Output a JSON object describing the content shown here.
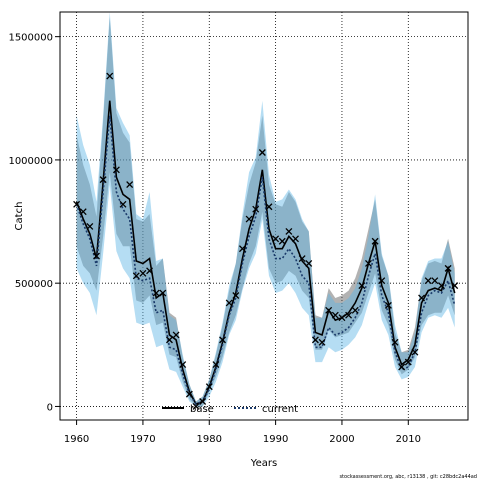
{
  "chart_data": {
    "type": "line",
    "xlabel": "Years",
    "ylabel": "Catch",
    "xlim": [
      1957.5,
      2019
    ],
    "ylim": [
      -55000,
      1600000
    ],
    "x_ticks": [
      1960,
      1970,
      1980,
      1990,
      2000,
      2010
    ],
    "y_ticks": [
      0,
      500000,
      1000000,
      1500000
    ],
    "grid": "dotted at ticks",
    "legend_position": "bottom-center",
    "footnote": "stockassessment.org, abc, r13138 , git: c28bdc2a44ad",
    "colors": {
      "base_line": "#000000",
      "base_band": "#555555",
      "current_line": "#1a3a6a",
      "current_band": "#5ab4e5",
      "observed_marker": "#000000"
    },
    "x": [
      1960,
      1961,
      1962,
      1963,
      1964,
      1965,
      1966,
      1967,
      1968,
      1969,
      1970,
      1971,
      1972,
      1973,
      1974,
      1975,
      1976,
      1977,
      1978,
      1979,
      1980,
      1981,
      1982,
      1983,
      1984,
      1985,
      1986,
      1987,
      1988,
      1989,
      1990,
      1991,
      1992,
      1993,
      1994,
      1995,
      1996,
      1997,
      1998,
      1999,
      2000,
      2001,
      2002,
      2003,
      2004,
      2005,
      2006,
      2007,
      2008,
      2009,
      2010,
      2011,
      2012,
      2013,
      2014,
      2015,
      2016,
      2017
    ],
    "series": [
      {
        "name": "base",
        "values": [
          830000,
          760000,
          700000,
          600000,
          910000,
          1240000,
          930000,
          860000,
          840000,
          590000,
          580000,
          600000,
          440000,
          460000,
          290000,
          270000,
          150000,
          60000,
          10000,
          20000,
          80000,
          160000,
          260000,
          380000,
          460000,
          600000,
          720000,
          800000,
          960000,
          720000,
          640000,
          640000,
          690000,
          660000,
          590000,
          560000,
          300000,
          290000,
          390000,
          350000,
          360000,
          380000,
          420000,
          480000,
          580000,
          670000,
          490000,
          420000,
          240000,
          170000,
          190000,
          250000,
          420000,
          470000,
          480000,
          470000,
          560000,
          460000
        ],
        "lower": [
          650000,
          570000,
          540000,
          470000,
          690000,
          950000,
          700000,
          650000,
          650000,
          430000,
          420000,
          450000,
          330000,
          340000,
          210000,
          200000,
          100000,
          30000,
          0,
          0,
          60000,
          120000,
          200000,
          300000,
          370000,
          480000,
          580000,
          650000,
          790000,
          560000,
          500000,
          510000,
          550000,
          530000,
          470000,
          440000,
          230000,
          230000,
          310000,
          280000,
          290000,
          300000,
          340000,
          380000,
          460000,
          540000,
          390000,
          330000,
          190000,
          130000,
          150000,
          200000,
          330000,
          370000,
          380000,
          380000,
          450000,
          370000
        ],
        "upper": [
          1100000,
          980000,
          900000,
          770000,
          1160000,
          1580000,
          1190000,
          1110000,
          1070000,
          760000,
          750000,
          780000,
          570000,
          600000,
          380000,
          360000,
          200000,
          90000,
          20000,
          40000,
          110000,
          210000,
          330000,
          470000,
          580000,
          760000,
          900000,
          990000,
          1180000,
          900000,
          820000,
          810000,
          870000,
          830000,
          750000,
          710000,
          370000,
          360000,
          480000,
          440000,
          450000,
          470000,
          520000,
          600000,
          720000,
          840000,
          610000,
          530000,
          300000,
          220000,
          230000,
          320000,
          510000,
          580000,
          590000,
          580000,
          680000,
          560000
        ]
      },
      {
        "name": "current",
        "values": [
          820000,
          740000,
          680000,
          570000,
          870000,
          1180000,
          870000,
          800000,
          760000,
          520000,
          510000,
          520000,
          380000,
          390000,
          240000,
          230000,
          130000,
          50000,
          10000,
          20000,
          70000,
          150000,
          250000,
          370000,
          440000,
          580000,
          690000,
          770000,
          930000,
          680000,
          600000,
          600000,
          640000,
          600000,
          530000,
          500000,
          240000,
          240000,
          320000,
          290000,
          300000,
          320000,
          360000,
          420000,
          530000,
          620000,
          450000,
          380000,
          220000,
          150000,
          160000,
          220000,
          380000,
          450000,
          470000,
          460000,
          510000,
          410000
        ],
        "lower": [
          560000,
          500000,
          460000,
          370000,
          620000,
          900000,
          630000,
          560000,
          520000,
          340000,
          330000,
          340000,
          240000,
          250000,
          150000,
          140000,
          80000,
          20000,
          0,
          0,
          40000,
          100000,
          180000,
          290000,
          350000,
          470000,
          560000,
          620000,
          760000,
          530000,
          460000,
          470000,
          500000,
          460000,
          400000,
          370000,
          180000,
          180000,
          240000,
          220000,
          230000,
          250000,
          280000,
          330000,
          420000,
          500000,
          350000,
          290000,
          160000,
          110000,
          120000,
          160000,
          300000,
          360000,
          370000,
          360000,
          400000,
          320000
        ],
        "upper": [
          1180000,
          1060000,
          980000,
          830000,
          1180000,
          1600000,
          1210000,
          1150000,
          1100000,
          780000,
          760000,
          870000,
          590000,
          600000,
          370000,
          350000,
          210000,
          90000,
          20000,
          40000,
          110000,
          220000,
          340000,
          490000,
          580000,
          780000,
          950000,
          1010000,
          1240000,
          940000,
          830000,
          840000,
          880000,
          840000,
          760000,
          710000,
          360000,
          360000,
          460000,
          420000,
          420000,
          440000,
          480000,
          560000,
          690000,
          860000,
          620000,
          530000,
          330000,
          220000,
          220000,
          300000,
          520000,
          590000,
          600000,
          600000,
          670000,
          540000
        ]
      }
    ],
    "observed": {
      "x": [
        1960,
        1961,
        1962,
        1963,
        1964,
        1965,
        1966,
        1967,
        1968,
        1969,
        1970,
        1971,
        1972,
        1973,
        1974,
        1975,
        1976,
        1977,
        1978,
        1979,
        1980,
        1981,
        1982,
        1983,
        1984,
        1985,
        1986,
        1987,
        1988,
        1989,
        1990,
        1991,
        1992,
        1993,
        1994,
        1995,
        1996,
        1997,
        1998,
        1999,
        2000,
        2001,
        2002,
        2003,
        2004,
        2005,
        2006,
        2007,
        2008,
        2009,
        2010,
        2011,
        2012,
        2013,
        2014,
        2015,
        2016,
        2017
      ],
      "values": [
        820000,
        790000,
        730000,
        610000,
        920000,
        1340000,
        960000,
        820000,
        900000,
        530000,
        540000,
        550000,
        460000,
        460000,
        270000,
        290000,
        170000,
        50000,
        0,
        20000,
        80000,
        170000,
        270000,
        420000,
        450000,
        640000,
        760000,
        800000,
        1030000,
        810000,
        680000,
        670000,
        710000,
        680000,
        600000,
        580000,
        270000,
        260000,
        390000,
        370000,
        360000,
        370000,
        390000,
        490000,
        580000,
        670000,
        510000,
        410000,
        260000,
        160000,
        180000,
        220000,
        440000,
        510000,
        510000,
        490000,
        560000,
        490000
      ]
    }
  }
}
